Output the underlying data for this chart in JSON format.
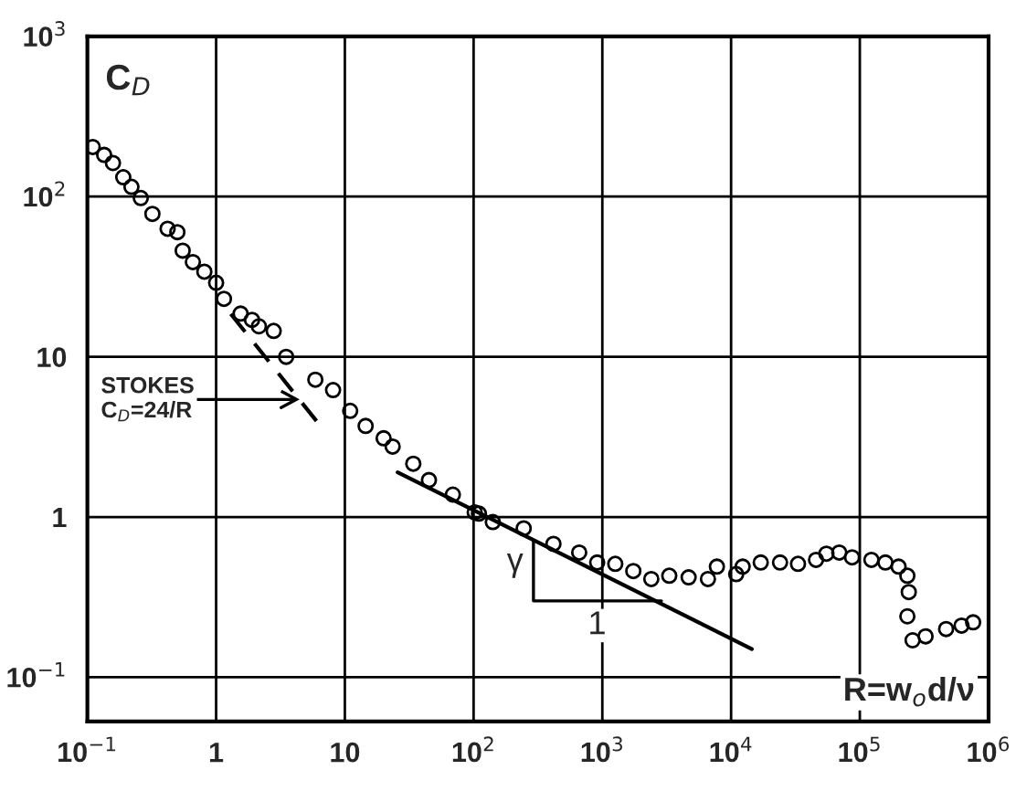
{
  "chart_data": {
    "type": "scatter",
    "xlim": [
      0.1,
      1000000
    ],
    "ylim": [
      0.053,
      1000
    ],
    "log": "xy",
    "xticks": [
      {
        "value": 0.1,
        "label": "10$^{−1}$"
      },
      1,
      10,
      {
        "value": 100,
        "label": "10$^{2}$"
      },
      {
        "value": 1000,
        "label": "10$^{3}$"
      },
      {
        "value": 10000,
        "label": "10$^{4}$"
      },
      {
        "value": 100000,
        "label": "10$^{5}$"
      },
      {
        "value": 1000000,
        "label": "10$^{6}$"
      }
    ],
    "yticks": [
      {
        "value": 0.1,
        "label": "10$^{−1}$"
      },
      1,
      10,
      {
        "value": 100,
        "label": "10$^{2}$"
      },
      {
        "value": 1000,
        "label": "10$^{3}$"
      }
    ],
    "ylabel": "C$_{D}$",
    "xlabel": "R=w$_{o}$d/ν",
    "grid": true,
    "legend": false,
    "marker": "circle",
    "series": [
      {
        "color": "#000000",
        "x": [
          0.11,
          0.135,
          0.158,
          0.19,
          0.22,
          0.26,
          0.32,
          0.42,
          0.5,
          0.55,
          0.66,
          0.81,
          1.0,
          1.15,
          1.55,
          1.9,
          2.15,
          2.8,
          3.5,
          5.9,
          8.1,
          11,
          14.5,
          20,
          23.5,
          34,
          45,
          69,
          110,
          141,
          102,
          245,
          417,
          661,
          912,
          1260,
          1740,
          2400,
          3310,
          4680,
          6610,
          7760,
          10960,
          12300,
          17000,
          24000,
          33100,
          45700,
          55000,
          69200,
          87100,
          123000,
          158000,
          200000,
          234000,
          240000,
          234000,
          257000,
          324000,
          468000,
          617000,
          759000
        ],
        "values": [
          204,
          182,
          162,
          132,
          115,
          98,
          78,
          63,
          60,
          46,
          39,
          34,
          29,
          23,
          18.6,
          17,
          15.5,
          14.5,
          10,
          7.2,
          6.2,
          4.6,
          3.7,
          3.1,
          2.75,
          2.15,
          1.7,
          1.38,
          1.05,
          0.93,
          1.07,
          0.85,
          0.68,
          0.6,
          0.52,
          0.51,
          0.46,
          0.41,
          0.43,
          0.42,
          0.41,
          0.49,
          0.44,
          0.49,
          0.52,
          0.52,
          0.51,
          0.54,
          0.59,
          0.6,
          0.56,
          0.54,
          0.52,
          0.49,
          0.43,
          0.34,
          0.24,
          0.17,
          0.18,
          0.2,
          0.21,
          0.22
        ]
      },
      {
        "type": "line",
        "color": "#000000",
        "line_style": "dashed",
        "marker": "none",
        "x": [
          1.3,
          6.3
        ],
        "values": [
          18.5,
          3.8
        ]
      },
      {
        "type": "line",
        "color": "#000000",
        "line_style": "solid",
        "marker": "none",
        "x": [
          25.7,
          14500
        ],
        "values": [
          1.9,
          0.15
        ]
      }
    ],
    "annotations": [
      "STOKES\nC$_{D}$=24/R",
      {
        "text": "γ",
        "x": 210,
        "y": 0.52
      },
      {
        "text": "1",
        "x": 910,
        "y": 0.21
      }
    ]
  }
}
